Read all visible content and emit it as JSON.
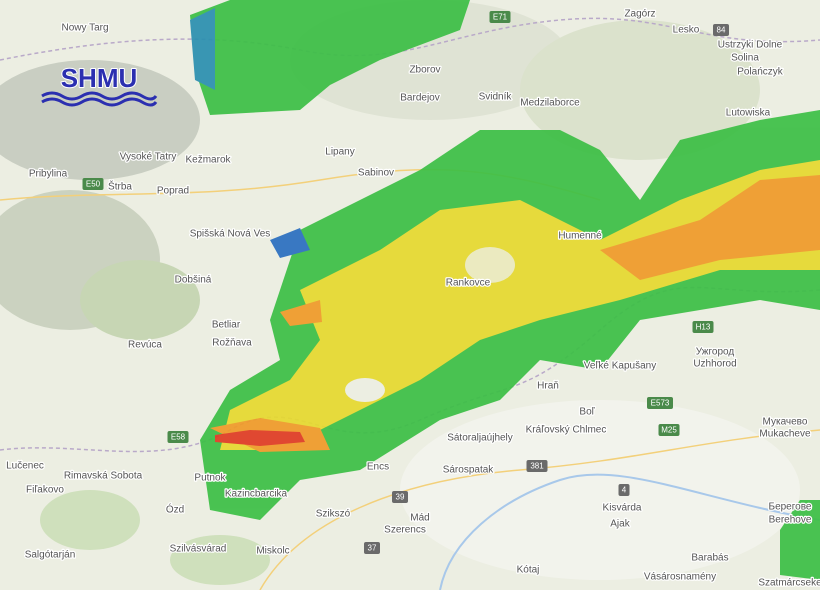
{
  "logo": "SHMU",
  "places": [
    "Nowy Targ",
    "Vysoké Tatry",
    "Kežmarok",
    "Poprad",
    "Štrba",
    "Pribylina",
    "Spišská Nová Ves",
    "Dobšiná",
    "Betliar",
    "Rožňava",
    "Revúca",
    "Rimavská Sobota",
    "Lučenec",
    "Fiľakovo",
    "Salgótarján",
    "Ózd",
    "Putnok",
    "Kazincbarcika",
    "Szilvásvárad",
    "Miskolc",
    "Szikszó",
    "Encs",
    "Szerencs",
    "Mád",
    "Sárospatak",
    "Sátoraljaújhely",
    "Kótaj",
    "Kisvárda",
    "Ajak",
    "Vásárosnamény",
    "Barabás",
    "Szatmárcseke",
    "Kráľovský Chlmec",
    "Boľ",
    "Hraň",
    "Veľké Kapušany",
    "Ужгород",
    "Uzhhorod",
    "Мукачево",
    "Mukacheve",
    "Берегове",
    "Berehove",
    "Rankovce",
    "Humenné",
    "Sabinov",
    "Lipany",
    "Bardejov",
    "Zborov",
    "Svidník",
    "Medzilaborce",
    "Zagórz",
    "Lesko",
    "Ustrzyki Dolne",
    "Solina",
    "Polańczyk",
    "Lutowiska"
  ],
  "roads": [
    "E50",
    "E58",
    "E71",
    "E573",
    "M25",
    "84",
    "H13",
    "381",
    "37",
    "39",
    "4"
  ]
}
